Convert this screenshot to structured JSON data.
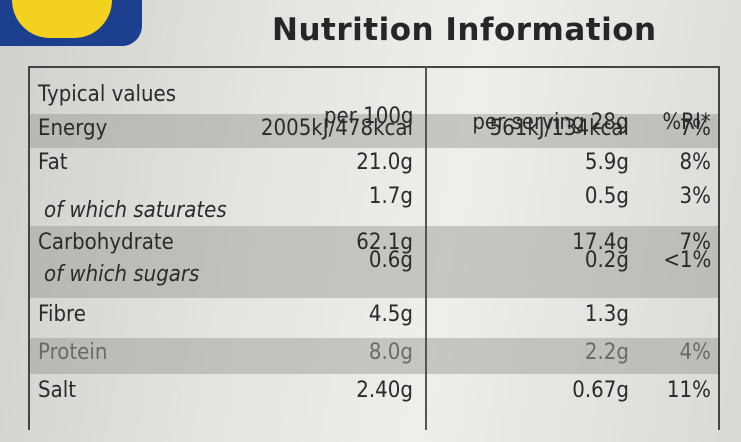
{
  "header": {
    "title": "Nutrition Information"
  },
  "table": {
    "columns": [
      "Typical values",
      "per 100g",
      "per serving 28g",
      "%RI*"
    ],
    "rows": [
      [
        "Energy",
        "2005kJ/478kcal",
        "561kJ/134kcal",
        "7%"
      ],
      [
        "Fat",
        "21.0g",
        "5.9g",
        "8%"
      ],
      [
        "of which saturates",
        "1.7g",
        "0.5g",
        "3%"
      ],
      [
        "Carbohydrate",
        "62.1g",
        "17.4g",
        "7%"
      ],
      [
        "of which sugars",
        "0.6g",
        "0.2g",
        "<1%"
      ],
      [
        "Fibre",
        "4.5g",
        "1.3g",
        null
      ],
      [
        "Protein",
        "8.0g",
        "2.2g",
        "4%"
      ],
      [
        "Salt",
        "2.40g",
        "0.67g",
        "11%"
      ]
    ]
  }
}
